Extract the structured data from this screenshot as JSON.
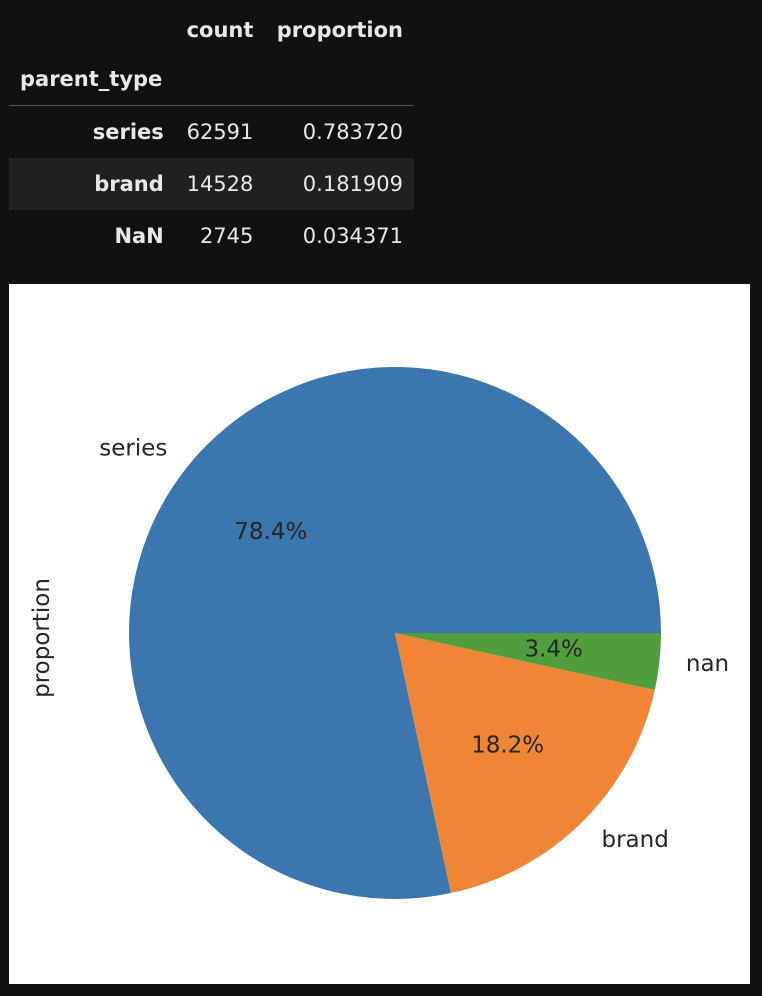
{
  "table": {
    "columns": [
      "count",
      "proportion"
    ],
    "index_name": "parent_type",
    "rows": [
      {
        "index": "series",
        "count": "62591",
        "proportion": "0.783720"
      },
      {
        "index": "brand",
        "count": "14528",
        "proportion": "0.181909"
      },
      {
        "index": "NaN",
        "count": "2745",
        "proportion": "0.034371"
      }
    ]
  },
  "chart_data": {
    "type": "pie",
    "ylabel": "proportion",
    "labels": [
      "series",
      "brand",
      "nan"
    ],
    "values": [
      0.78372,
      0.181909,
      0.034371
    ],
    "autopct": [
      "78.4%",
      "18.2%",
      "3.4%"
    ],
    "colors": [
      "#3b76af",
      "#ef8636",
      "#519e3e"
    ],
    "start_angle_deg": 0,
    "direction": "counterclockwise"
  }
}
